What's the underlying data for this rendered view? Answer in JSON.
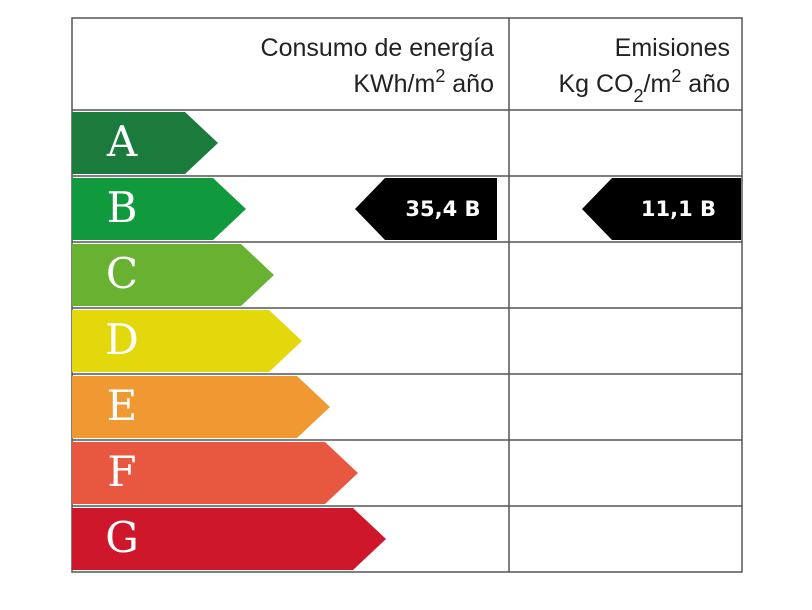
{
  "header": {
    "energy_title": "Consumo de energía",
    "energy_unit": [
      "KWh/m",
      "2",
      " año"
    ],
    "emissions_title": "Emisiones",
    "emissions_unit": [
      "Kg CO",
      "2",
      "/m",
      "2",
      " año"
    ]
  },
  "rows": [
    {
      "letter": "A",
      "color": "#1b7b3c"
    },
    {
      "letter": "B",
      "color": "#109a3d",
      "energy": "35,4 B",
      "emissions": "11,1 B"
    },
    {
      "letter": "C",
      "color": "#68b131"
    },
    {
      "letter": "D",
      "color": "#e2d80b"
    },
    {
      "letter": "E",
      "color": "#f09932"
    },
    {
      "letter": "F",
      "color": "#e8573f"
    },
    {
      "letter": "G",
      "color": "#cf172b"
    }
  ]
}
